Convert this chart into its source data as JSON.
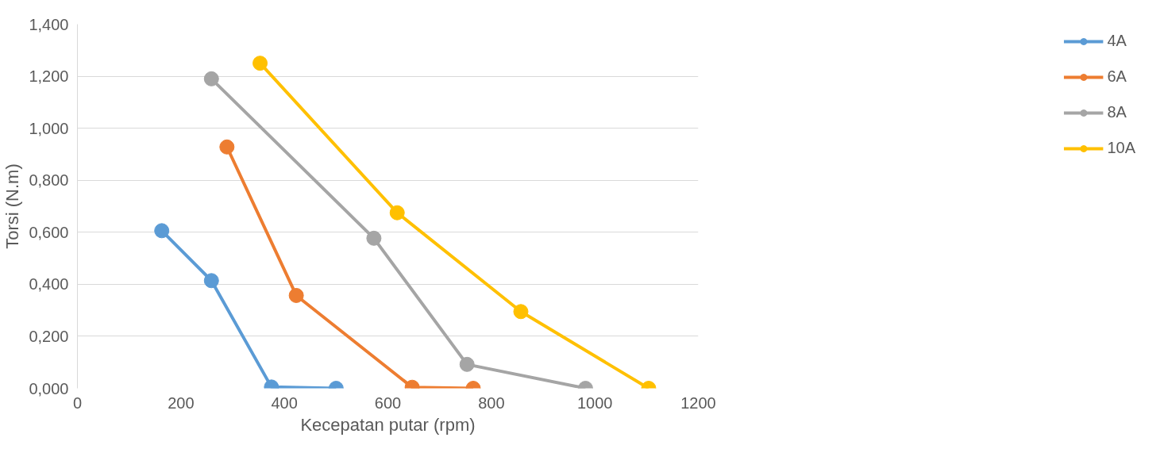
{
  "chart_data": {
    "type": "line",
    "xlabel": "Kecepatan putar (rpm)",
    "ylabel": "Torsi (N.m)",
    "xlim": [
      0,
      1200
    ],
    "xticks": [
      0,
      200,
      400,
      600,
      800,
      1000,
      1200
    ],
    "ylim": [
      0,
      1.4
    ],
    "yticks": [
      {
        "value": 0,
        "label": "0,000"
      },
      {
        "value": 0.2,
        "label": "0,200"
      },
      {
        "value": 0.4,
        "label": "0,400"
      },
      {
        "value": 0.6,
        "label": "0,600"
      },
      {
        "value": 0.8,
        "label": "0,800"
      },
      {
        "value": 1.0,
        "label": "1,000"
      },
      {
        "value": 1.2,
        "label": "1,200"
      },
      {
        "value": 1.4,
        "label": "1,400"
      }
    ],
    "grid": "y",
    "legend": "right",
    "marker": "circle",
    "line_style": "solid",
    "series": [
      {
        "name": "4A",
        "color": "#5b9bd5",
        "x": [
          163,
          259,
          375,
          500
        ],
        "values": [
          0.606,
          0.414,
          0.005,
          0
        ]
      },
      {
        "name": "6A",
        "color": "#ed7d31",
        "x": [
          289,
          423,
          647,
          765
        ],
        "values": [
          0.928,
          0.357,
          0.004,
          0
        ]
      },
      {
        "name": "8A",
        "color": "#a5a5a5",
        "x": [
          259,
          573,
          753,
          982
        ],
        "values": [
          1.19,
          0.577,
          0.092,
          0
        ]
      },
      {
        "name": "10A",
        "color": "#ffc000",
        "x": [
          353,
          618,
          857,
          1104
        ],
        "values": [
          1.25,
          0.675,
          0.295,
          0
        ]
      }
    ]
  }
}
